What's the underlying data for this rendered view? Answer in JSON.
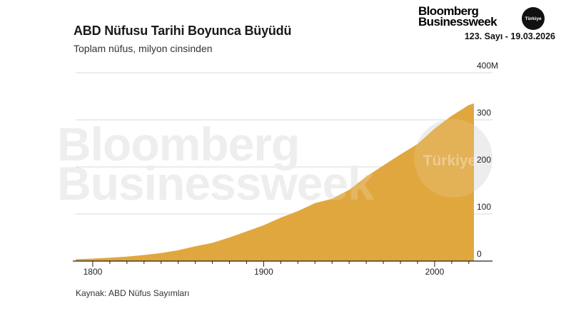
{
  "header": {
    "title": "ABD Nüfusu Tarihi Boyunca Büyüdü",
    "subtitle": "Toplam nüfus, milyon cinsinden"
  },
  "brand": {
    "line1": "Bloomberg",
    "line2": "Businessweek",
    "badge": "Türkiye",
    "issue": "123. Sayı - 19.03.2026"
  },
  "watermark": {
    "line1": "Bloomberg",
    "line2": "Businessweek",
    "badge": "Türkiye"
  },
  "footer": {
    "source": "Kaynak: ABD Nüfus Sayımları"
  },
  "colors": {
    "area": "#e0a73f",
    "grid": "#d9d9d9",
    "axis": "#222222",
    "watermark": "#ebebeb"
  },
  "chart_data": {
    "type": "area",
    "title": "ABD Nüfusu Tarihi Boyunca Büyüdü",
    "subtitle": "Toplam nüfus, milyon cinsinden",
    "xlabel": "",
    "ylabel": "",
    "xlim": [
      1790,
      2023
    ],
    "ylim": [
      0,
      400
    ],
    "y_unit_suffix": "M",
    "x_ticks": [
      1800,
      1900,
      2000
    ],
    "y_ticks": [
      0,
      100,
      200,
      300,
      400
    ],
    "y_tick_labels": [
      "0",
      "100",
      "200",
      "300",
      "400M"
    ],
    "grid": true,
    "legend": "none",
    "series": [
      {
        "x": [
          1790,
          1800,
          1810,
          1820,
          1830,
          1840,
          1850,
          1860,
          1870,
          1880,
          1890,
          1900,
          1910,
          1920,
          1930,
          1940,
          1950,
          1960,
          1970,
          1980,
          1990,
          2000,
          2010,
          2020,
          2023
        ],
        "y": [
          3.9,
          5.3,
          7.2,
          9.6,
          12.9,
          17.1,
          23.2,
          31.4,
          38.6,
          50.2,
          63.0,
          76.2,
          92.2,
          106.0,
          123.2,
          132.2,
          151.3,
          179.3,
          203.2,
          226.5,
          248.7,
          281.4,
          308.7,
          331.4,
          334.9
        ]
      }
    ]
  }
}
